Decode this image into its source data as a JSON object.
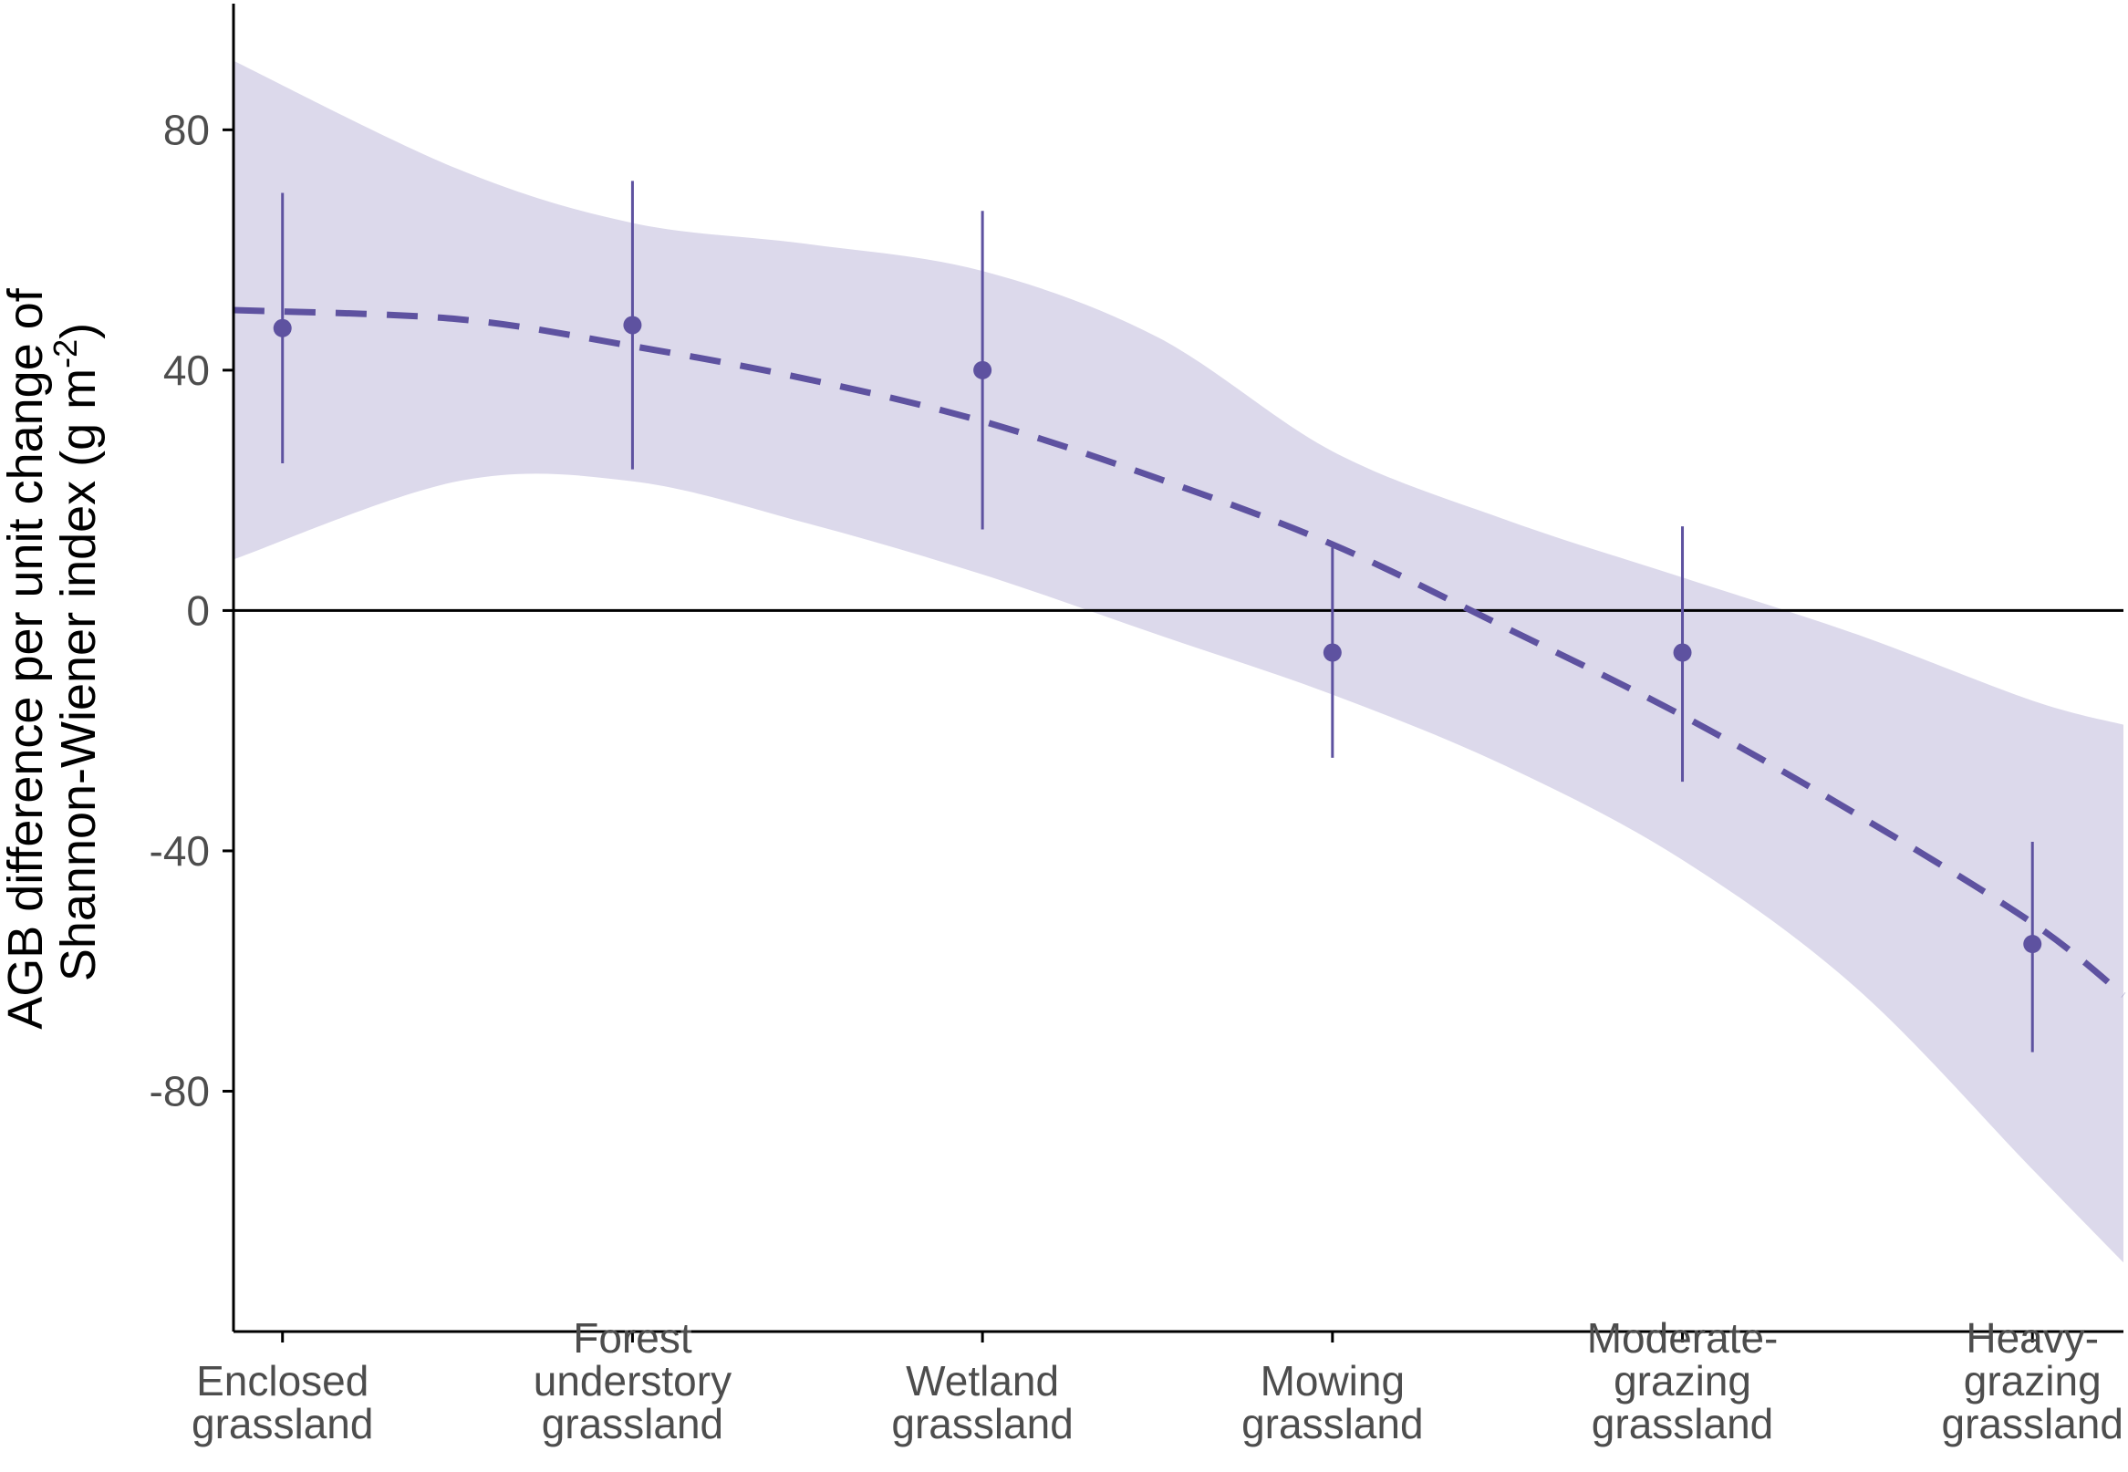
{
  "chart_data": {
    "type": "scatter",
    "title": "",
    "xlabel": "",
    "ylabel_line1": "AGB difference per unit change of",
    "ylabel_line2_prefix": "Shannon-Wiener index (g m",
    "ylabel_superscript": "-2",
    "ylabel_line2_suffix": ")",
    "ylim": [
      -120,
      101
    ],
    "xlim": [
      0.86,
      6.26
    ],
    "y_ticks": [
      80,
      40,
      0,
      -40,
      -80
    ],
    "y_tick_labels": [
      "80",
      "40",
      "0",
      "-40",
      "-80"
    ],
    "reference_line": 0,
    "categories": [
      [
        "Enclosed",
        "grassland"
      ],
      [
        "Forest",
        "understory",
        "grassland"
      ],
      [
        "Wetland",
        "grassland"
      ],
      [
        "Mowing",
        "grassland"
      ],
      [
        "Moderate-",
        "grazing",
        "grassland"
      ],
      [
        "Heavy-",
        "grazing",
        "grassland"
      ]
    ],
    "points": [
      {
        "x": 1,
        "y": 47.0,
        "lower": 24.5,
        "upper": 69.5
      },
      {
        "x": 2,
        "y": 47.5,
        "lower": 23.5,
        "upper": 71.5
      },
      {
        "x": 3,
        "y": 40.0,
        "lower": 13.5,
        "upper": 66.5
      },
      {
        "x": 4,
        "y": -7.0,
        "lower": -24.5,
        "upper": 10.5
      },
      {
        "x": 5,
        "y": -7.0,
        "lower": -28.5,
        "upper": 14.0
      },
      {
        "x": 6,
        "y": -55.5,
        "lower": -73.5,
        "upper": -38.5
      }
    ],
    "fit_line": {
      "style": "dashed",
      "x": [
        0.86,
        1.5,
        2.0,
        2.5,
        3.0,
        3.5,
        4.0,
        4.5,
        5.0,
        5.5,
        6.0,
        6.26
      ],
      "y": [
        50.0,
        48.5,
        44.0,
        38.5,
        31.5,
        22.0,
        11.0,
        -3.0,
        -17.5,
        -34.0,
        -52.0,
        -64.0
      ]
    },
    "confidence_band": {
      "x": [
        0.86,
        1.5,
        2.0,
        2.5,
        3.0,
        3.5,
        4.0,
        4.5,
        5.0,
        5.5,
        6.0,
        6.26
      ],
      "lower": [
        8.5,
        21.5,
        21.5,
        14.5,
        6.0,
        -4.0,
        -14.0,
        -26.0,
        -41.5,
        -63.0,
        -93.0,
        -108.5
      ],
      "upper": [
        91.5,
        73.5,
        64.5,
        61.0,
        56.5,
        45.5,
        26.5,
        15.0,
        5.5,
        -4.0,
        -15.0,
        -19.0
      ]
    },
    "colors": {
      "point": "#5e52a0",
      "line": "#5e52a0",
      "band": "#dcd9eb",
      "axis": "#000000"
    }
  }
}
